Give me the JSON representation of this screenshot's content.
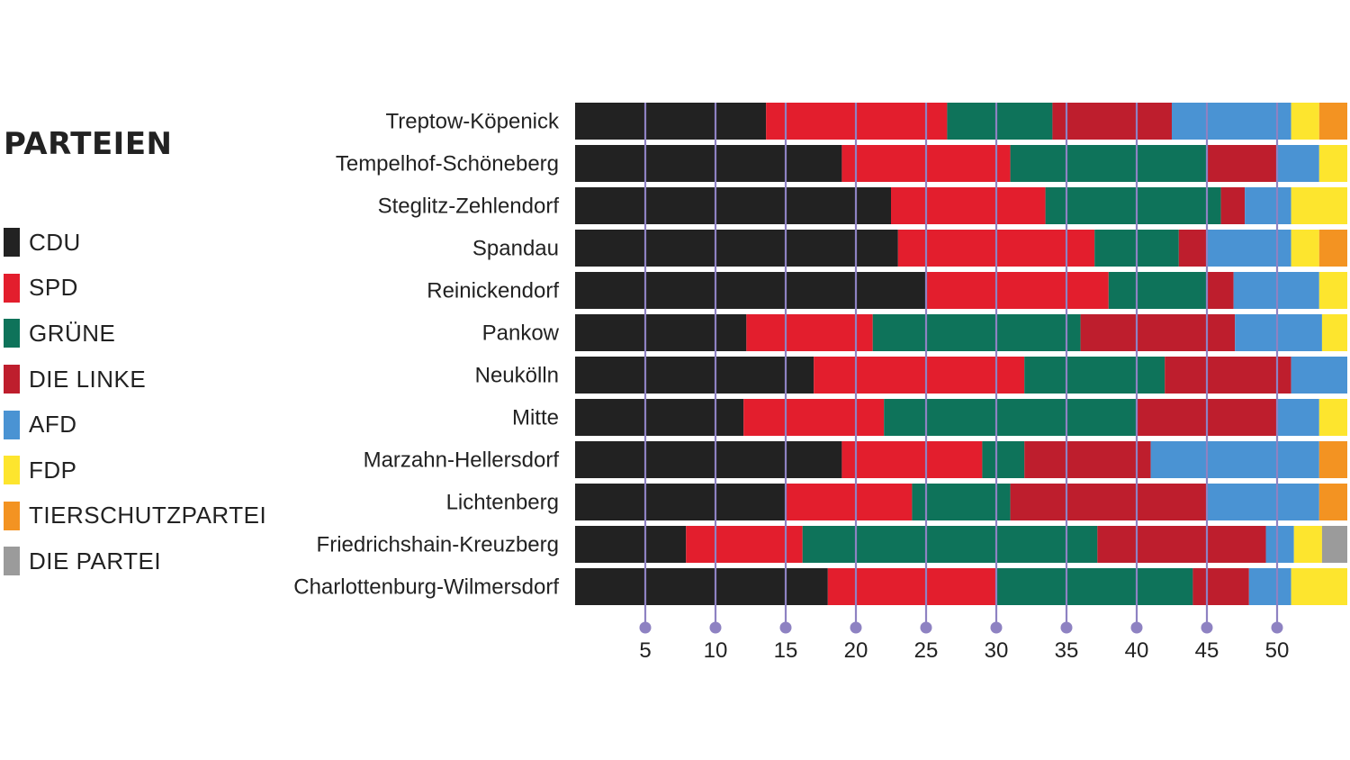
{
  "legend": {
    "title": "PARTEIEN",
    "items": [
      {
        "label": "CDU",
        "color": "#222222"
      },
      {
        "label": "SPD",
        "color": "#e31e2d"
      },
      {
        "label": "GRÜNE",
        "color": "#0e735a"
      },
      {
        "label": "DIE LINKE",
        "color": "#be1e2d"
      },
      {
        "label": "AFD",
        "color": "#4a93d3"
      },
      {
        "label": "FDP",
        "color": "#fde52e"
      },
      {
        "label": "TIERSCHUTZPARTEI",
        "color": "#f39322"
      },
      {
        "label": "DIE PARTEI",
        "color": "#9b9b9b"
      }
    ]
  },
  "chart_data": {
    "type": "bar",
    "orientation": "horizontal",
    "stacked": true,
    "title": "",
    "xlabel": "",
    "ylabel": "",
    "xlim": [
      0,
      55
    ],
    "xticks": [
      5,
      10,
      15,
      20,
      25,
      30,
      35,
      40,
      45,
      50
    ],
    "grid": true,
    "legend": "left",
    "categories": [
      "Treptow-Köpenick",
      "Tempelhof-Schöneberg",
      "Steglitz-Zehlendorf",
      "Spandau",
      "Reinickendorf",
      "Pankow",
      "Neukölln",
      "Mitte",
      "Marzahn-Hellersdorf",
      "Lichtenberg",
      "Friedrichshain-Kreuzberg",
      "Charlottenburg-Wilmersdorf"
    ],
    "series": [
      {
        "name": "CDU",
        "color": "#222222",
        "values": [
          13.6,
          19.0,
          22.5,
          23.0,
          25.0,
          12.2,
          17.0,
          12.0,
          19.0,
          15.0,
          7.9,
          18.0
        ]
      },
      {
        "name": "SPD",
        "color": "#e31e2d",
        "values": [
          12.9,
          12.0,
          11.0,
          14.0,
          13.0,
          9.0,
          15.0,
          10.0,
          10.0,
          9.0,
          8.3,
          12.0
        ]
      },
      {
        "name": "GRÜNE",
        "color": "#0e735a",
        "values": [
          7.5,
          14.0,
          12.5,
          6.0,
          7.0,
          14.8,
          10.0,
          18.0,
          3.0,
          7.0,
          21.0,
          14.0
        ]
      },
      {
        "name": "DIE LINKE",
        "color": "#be1e2d",
        "values": [
          8.5,
          5.0,
          1.7,
          2.0,
          1.9,
          11.0,
          9.0,
          10.0,
          9.0,
          14.0,
          12.0,
          4.0
        ]
      },
      {
        "name": "AFD",
        "color": "#4a93d3",
        "values": [
          8.5,
          3.0,
          3.3,
          6.0,
          6.1,
          6.2,
          4.0,
          3.0,
          12.0,
          8.0,
          2.0,
          3.0
        ]
      },
      {
        "name": "FDP",
        "color": "#fde52e",
        "values": [
          2.0,
          2.0,
          4.0,
          2.0,
          2.0,
          2.0,
          0,
          2.0,
          0,
          0,
          2.0,
          4.0
        ]
      },
      {
        "name": "TIERSCHUTZPARTEI",
        "color": "#f39322",
        "values": [
          2.0,
          0,
          0,
          2.0,
          0,
          0,
          0,
          0,
          2.0,
          2.0,
          0,
          0
        ]
      },
      {
        "name": "DIE PARTEI",
        "color": "#9b9b9b",
        "values": [
          0,
          0,
          0,
          0,
          0,
          0,
          0,
          0,
          0,
          0,
          2.0,
          0
        ]
      }
    ],
    "grid_color": "#8e82c2"
  }
}
